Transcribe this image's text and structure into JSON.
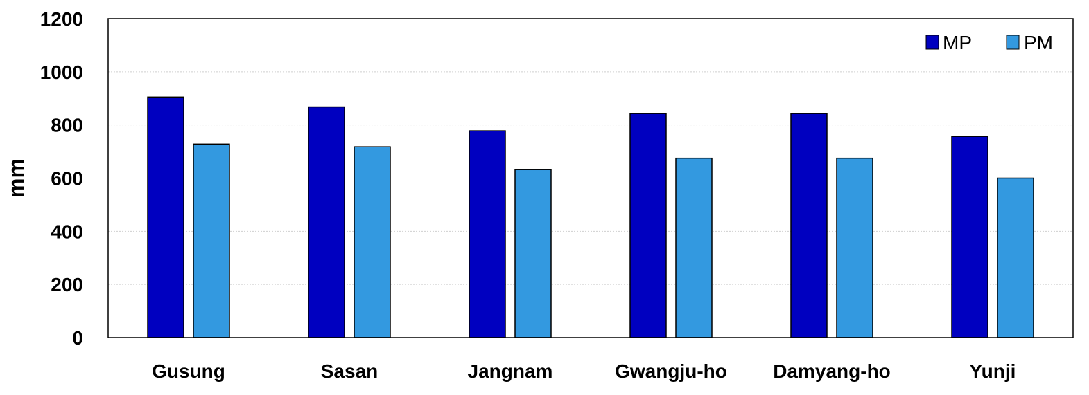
{
  "chart_data": {
    "type": "bar",
    "title": "",
    "xlabel": "",
    "ylabel": "mm",
    "ylim": [
      0,
      1200
    ],
    "yticks": [
      0,
      200,
      400,
      600,
      800,
      1000,
      1200
    ],
    "grid": true,
    "legend_position": "top-right",
    "categories": [
      "Gusung",
      "Sasan",
      "Jangnam",
      "Gwangju-ho",
      "Damyang-ho",
      "Yunji"
    ],
    "series": [
      {
        "name": "MP",
        "color": "#0000c0",
        "values": [
          905,
          868,
          778,
          843,
          843,
          757
        ]
      },
      {
        "name": "PM",
        "color": "#3399e0",
        "values": [
          728,
          718,
          632,
          675,
          675,
          600
        ]
      }
    ]
  }
}
